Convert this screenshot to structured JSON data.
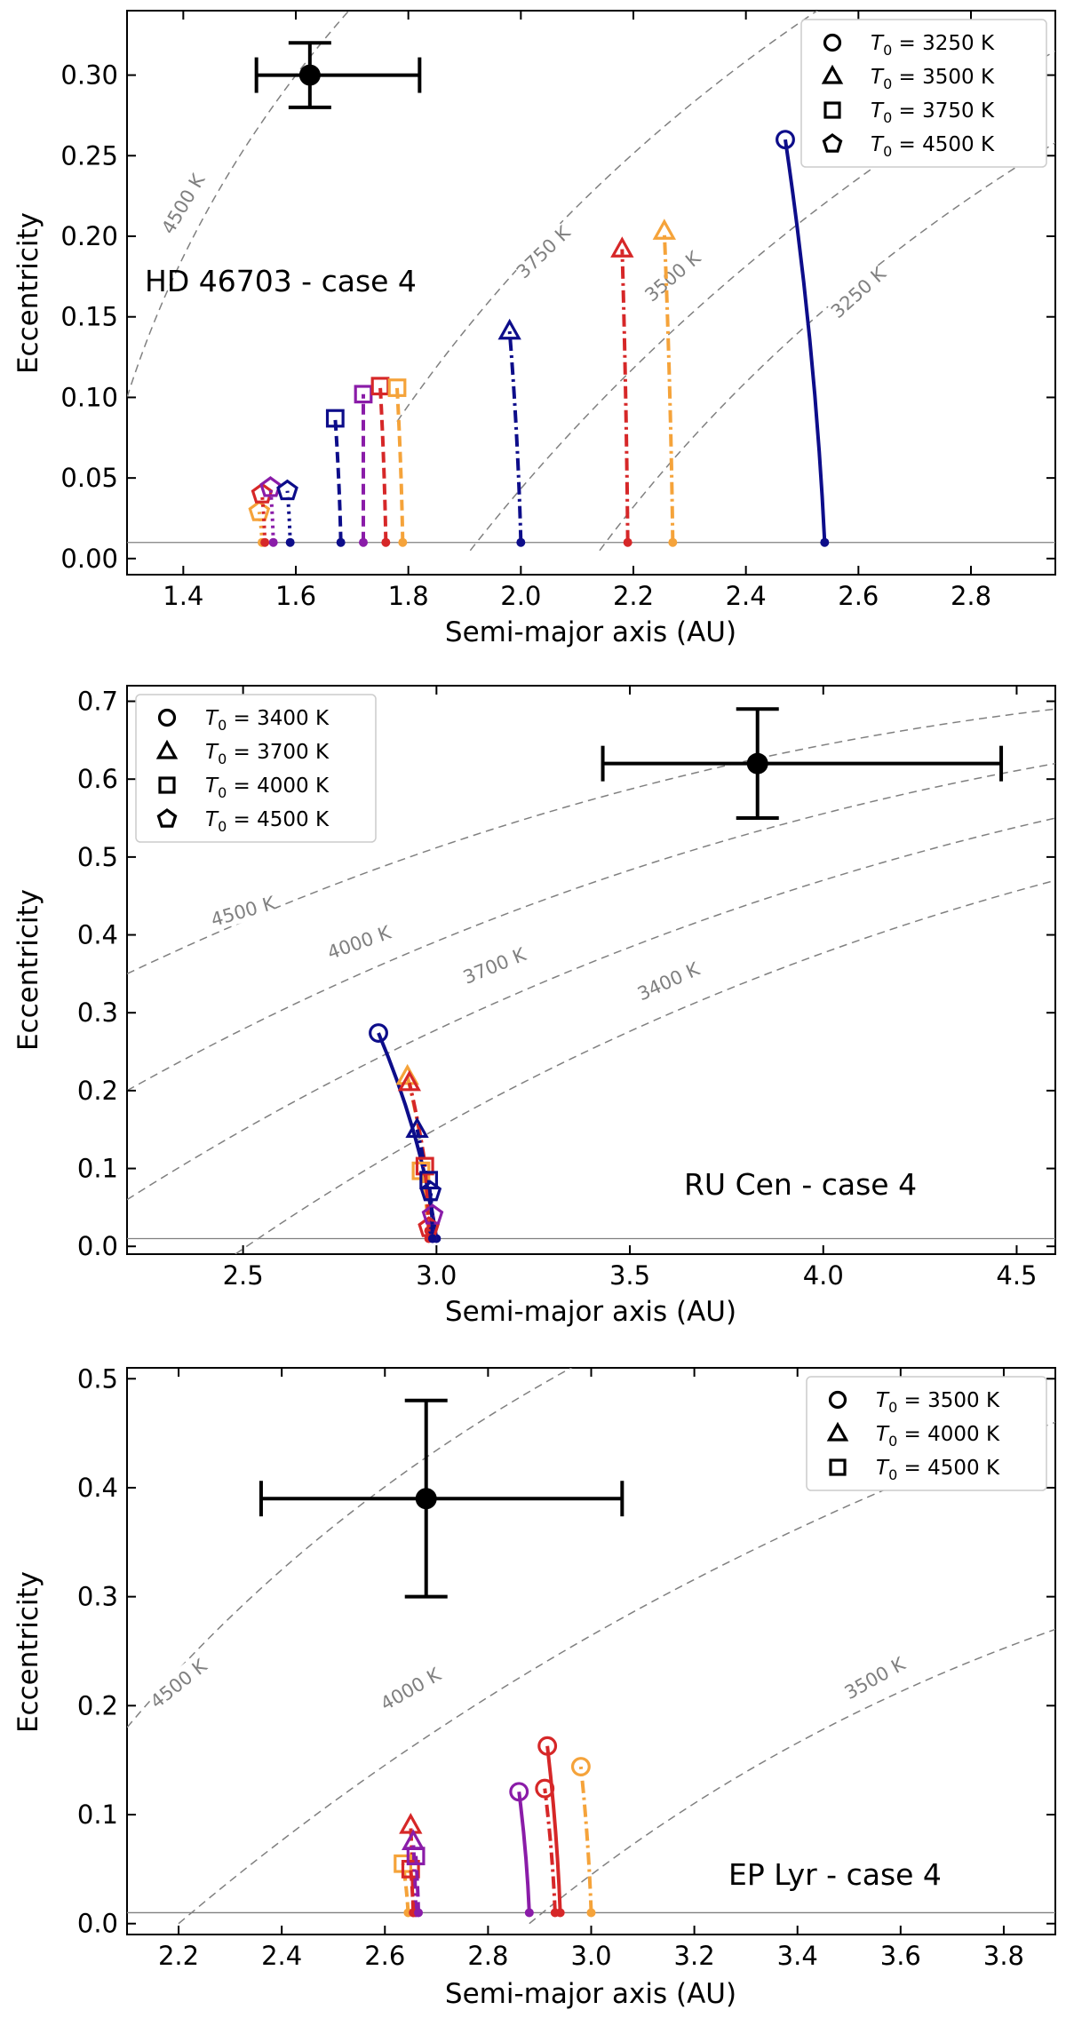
{
  "colors": {
    "navy": "#0d0d8a",
    "red": "#d62728",
    "orange": "#f5a33a",
    "purple": "#8a1ca8",
    "iso": "#808080",
    "obs": "#000000",
    "baseline": "#808080"
  },
  "chart_data": [
    {
      "type": "line",
      "title": "HD 46703 - case 4",
      "xlabel": "Semi-major axis (AU)",
      "ylabel": "Eccentricity",
      "xlim": [
        1.3,
        2.95
      ],
      "ylim": [
        -0.01,
        0.34
      ],
      "xticks": [
        "1.4",
        "1.6",
        "1.8",
        "2.0",
        "2.2",
        "2.4",
        "2.6",
        "2.8"
      ],
      "xtick_values": [
        1.4,
        1.6,
        1.8,
        2.0,
        2.2,
        2.4,
        2.6,
        2.8
      ],
      "yticks": [
        "0.00",
        "0.05",
        "0.10",
        "0.15",
        "0.20",
        "0.25",
        "0.30"
      ],
      "ytick_values": [
        0.0,
        0.05,
        0.1,
        0.15,
        0.2,
        0.25,
        0.3
      ],
      "baseline": 0.01,
      "legend_position": "top-right",
      "legend": [
        {
          "marker": "circle",
          "prefix": "T",
          "sub": "0",
          "text": " = 3250 K"
        },
        {
          "marker": "triangle",
          "prefix": "T",
          "sub": "0",
          "text": " = 3500 K"
        },
        {
          "marker": "square",
          "prefix": "T",
          "sub": "0",
          "text": " = 3750 K"
        },
        {
          "marker": "pentagon",
          "prefix": "T",
          "sub": "0",
          "text": " = 4500 K"
        }
      ],
      "observed": {
        "x": 1.625,
        "y": 0.3,
        "xerr": [
          0.095,
          0.195
        ],
        "yerr": [
          0.02,
          0.02
        ]
      },
      "isotherms": [
        {
          "label": "4500 K",
          "x0": 1.3,
          "y0": 0.1,
          "x1": 1.72,
          "y1": 0.35,
          "label_x": 1.4,
          "label_y": 0.22
        },
        {
          "label": "3750 K",
          "x0": 1.78,
          "y0": 0.085,
          "x1": 2.57,
          "y1": 0.35,
          "label_x": 2.04,
          "label_y": 0.19
        },
        {
          "label": "3500 K",
          "x0": 1.91,
          "y0": 0.005,
          "x1": 2.95,
          "y1": 0.315,
          "label_x": 2.27,
          "label_y": 0.175
        },
        {
          "label": "3250 K",
          "x0": 2.14,
          "y0": 0.005,
          "x1": 2.95,
          "y1": 0.258,
          "label_x": 2.6,
          "label_y": 0.165
        }
      ],
      "series": [
        {
          "name": "3250 K run",
          "marker": "circle",
          "color": "navy",
          "style": "solid",
          "start": [
            2.54,
            0.01
          ],
          "end": [
            2.47,
            0.26
          ]
        },
        {
          "name": "3500 K run 1",
          "marker": "triangle",
          "color": "navy",
          "style": "dashdot",
          "start": [
            2.0,
            0.01
          ],
          "end": [
            1.98,
            0.141
          ]
        },
        {
          "name": "3500 K run 2",
          "marker": "triangle",
          "color": "red",
          "style": "dashdot",
          "start": [
            2.19,
            0.01
          ],
          "end": [
            2.18,
            0.192
          ]
        },
        {
          "name": "3500 K run 3",
          "marker": "triangle",
          "color": "orange",
          "style": "dashdot",
          "start": [
            2.27,
            0.01
          ],
          "end": [
            2.255,
            0.203
          ]
        },
        {
          "name": "3750 K run 1",
          "marker": "square",
          "color": "navy",
          "style": "dashed",
          "start": [
            1.68,
            0.01
          ],
          "end": [
            1.67,
            0.087
          ]
        },
        {
          "name": "3750 K run 2",
          "marker": "square",
          "color": "purple",
          "style": "dashed",
          "start": [
            1.72,
            0.01
          ],
          "end": [
            1.72,
            0.102
          ]
        },
        {
          "name": "3750 K run 3",
          "marker": "square",
          "color": "red",
          "style": "dashed",
          "start": [
            1.76,
            0.01
          ],
          "end": [
            1.75,
            0.107
          ]
        },
        {
          "name": "3750 K run 4",
          "marker": "square",
          "color": "orange",
          "style": "dashed",
          "start": [
            1.79,
            0.01
          ],
          "end": [
            1.78,
            0.106
          ]
        },
        {
          "name": "4500 K run 1",
          "marker": "pentagon",
          "color": "orange",
          "style": "dotted",
          "start": [
            1.54,
            0.01
          ],
          "end": [
            1.535,
            0.029
          ]
        },
        {
          "name": "4500 K run 2",
          "marker": "pentagon",
          "color": "red",
          "style": "dotted",
          "start": [
            1.545,
            0.01
          ],
          "end": [
            1.54,
            0.04
          ]
        },
        {
          "name": "4500 K run 3",
          "marker": "pentagon",
          "color": "purple",
          "style": "dotted",
          "start": [
            1.56,
            0.01
          ],
          "end": [
            1.555,
            0.044
          ]
        },
        {
          "name": "4500 K run 4",
          "marker": "pentagon",
          "color": "navy",
          "style": "dotted",
          "start": [
            1.59,
            0.01
          ],
          "end": [
            1.585,
            0.042
          ]
        }
      ]
    },
    {
      "type": "line",
      "title": "RU Cen - case 4",
      "xlabel": "Semi-major axis (AU)",
      "ylabel": "Eccentricity",
      "xlim": [
        2.2,
        4.6
      ],
      "ylim": [
        -0.01,
        0.72
      ],
      "xticks": [
        "2.5",
        "3.0",
        "3.5",
        "4.0",
        "4.5"
      ],
      "xtick_values": [
        2.5,
        3.0,
        3.5,
        4.0,
        4.5
      ],
      "yticks": [
        "0.0",
        "0.1",
        "0.2",
        "0.3",
        "0.4",
        "0.5",
        "0.6",
        "0.7"
      ],
      "ytick_values": [
        0.0,
        0.1,
        0.2,
        0.3,
        0.4,
        0.5,
        0.6,
        0.7
      ],
      "baseline": 0.01,
      "legend_position": "top-left",
      "legend": [
        {
          "marker": "circle",
          "prefix": "T",
          "sub": "0",
          "text": " = 3400 K"
        },
        {
          "marker": "triangle",
          "prefix": "T",
          "sub": "0",
          "text": " = 3700 K"
        },
        {
          "marker": "square",
          "prefix": "T",
          "sub": "0",
          "text": " = 4000 K"
        },
        {
          "marker": "pentagon",
          "prefix": "T",
          "sub": "0",
          "text": " = 4500 K"
        }
      ],
      "observed": {
        "x": 3.83,
        "y": 0.62,
        "xerr": [
          0.4,
          0.63
        ],
        "yerr": [
          0.07,
          0.07
        ]
      },
      "isotherms": [
        {
          "label": "4500 K",
          "x0": 2.2,
          "y0": 0.35,
          "x1": 4.6,
          "y1": 0.69,
          "label_x": 2.5,
          "label_y": 0.43
        },
        {
          "label": "4000 K",
          "x0": 2.2,
          "y0": 0.2,
          "x1": 4.6,
          "y1": 0.62,
          "label_x": 2.8,
          "label_y": 0.39
        },
        {
          "label": "3700 K",
          "x0": 2.2,
          "y0": 0.06,
          "x1": 4.6,
          "y1": 0.55,
          "label_x": 3.15,
          "label_y": 0.36
        },
        {
          "label": "3400 K",
          "x0": 2.48,
          "y0": -0.01,
          "x1": 4.6,
          "y1": 0.47,
          "label_x": 3.6,
          "label_y": 0.34
        }
      ],
      "series": [
        {
          "name": "3400 K run",
          "marker": "circle",
          "color": "navy",
          "style": "solid",
          "start": [
            3.0,
            0.01
          ],
          "end": [
            2.85,
            0.274
          ]
        },
        {
          "name": "3700 K run 1",
          "marker": "triangle",
          "color": "orange",
          "style": "dashdot",
          "start": [
            2.99,
            0.02
          ],
          "end": [
            2.925,
            0.218
          ]
        },
        {
          "name": "3700 K run 2",
          "marker": "triangle",
          "color": "red",
          "style": "dashdot",
          "start": [
            2.99,
            0.02
          ],
          "end": [
            2.93,
            0.21
          ]
        },
        {
          "name": "3700 K run 3",
          "marker": "triangle",
          "color": "navy",
          "style": "dashdot",
          "start": [
            2.99,
            0.02
          ],
          "end": [
            2.95,
            0.15
          ]
        },
        {
          "name": "4000 K run 1",
          "marker": "square",
          "color": "orange",
          "style": "dashed",
          "start": [
            2.98,
            0.02
          ],
          "end": [
            2.96,
            0.097
          ]
        },
        {
          "name": "4000 K run 2",
          "marker": "square",
          "color": "red",
          "style": "dashed",
          "start": [
            2.98,
            0.02
          ],
          "end": [
            2.97,
            0.103
          ]
        },
        {
          "name": "4000 K run 3",
          "marker": "square",
          "color": "navy",
          "style": "dashed",
          "start": [
            2.99,
            0.02
          ],
          "end": [
            2.98,
            0.085
          ]
        },
        {
          "name": "4500 K run 1",
          "marker": "pentagon",
          "color": "red",
          "style": "dotted",
          "start": [
            2.98,
            0.01
          ],
          "end": [
            2.98,
            0.024
          ]
        },
        {
          "name": "4500 K run 2",
          "marker": "pentagon",
          "color": "purple",
          "style": "dotted",
          "start": [
            2.99,
            0.01
          ],
          "end": [
            2.99,
            0.04
          ]
        },
        {
          "name": "4500 K run 3",
          "marker": "pentagon",
          "color": "navy",
          "style": "dotted",
          "start": [
            2.99,
            0.01
          ],
          "end": [
            2.985,
            0.07
          ]
        }
      ]
    },
    {
      "type": "line",
      "title": "EP Lyr - case 4",
      "xlabel": "Semi-major axis (AU)",
      "ylabel": "Eccentricity",
      "xlim": [
        2.1,
        3.9
      ],
      "ylim": [
        -0.01,
        0.51
      ],
      "xticks": [
        "2.2",
        "2.4",
        "2.6",
        "2.8",
        "3.0",
        "3.2",
        "3.4",
        "3.6",
        "3.8"
      ],
      "xtick_values": [
        2.2,
        2.4,
        2.6,
        2.8,
        3.0,
        3.2,
        3.4,
        3.6,
        3.8
      ],
      "yticks": [
        "0.0",
        "0.1",
        "0.2",
        "0.3",
        "0.4",
        "0.5"
      ],
      "ytick_values": [
        0.0,
        0.1,
        0.2,
        0.3,
        0.4,
        0.5
      ],
      "baseline": 0.01,
      "legend_position": "top-right",
      "legend": [
        {
          "marker": "circle",
          "prefix": "T",
          "sub": "0",
          "text": " = 3500 K"
        },
        {
          "marker": "triangle",
          "prefix": "T",
          "sub": "0",
          "text": " = 4000 K"
        },
        {
          "marker": "square",
          "prefix": "T",
          "sub": "0",
          "text": " = 4500 K"
        }
      ],
      "observed": {
        "x": 2.68,
        "y": 0.39,
        "xerr": [
          0.32,
          0.38
        ],
        "yerr": [
          0.09,
          0.09
        ]
      },
      "isotherms": [
        {
          "label": "4500 K",
          "x0": 2.1,
          "y0": 0.18,
          "x1": 3.0,
          "y1": 0.52,
          "label_x": 2.2,
          "label_y": 0.22
        },
        {
          "label": "4000 K",
          "x0": 2.2,
          "y0": 0.0,
          "x1": 3.9,
          "y1": 0.46,
          "label_x": 2.65,
          "label_y": 0.215
        },
        {
          "label": "3500 K",
          "x0": 2.88,
          "y0": 0.0,
          "x1": 3.9,
          "y1": 0.27,
          "label_x": 3.55,
          "label_y": 0.225
        }
      ],
      "series": [
        {
          "name": "3500 K run 1",
          "marker": "circle",
          "color": "purple",
          "style": "solid",
          "start": [
            2.88,
            0.01
          ],
          "end": [
            2.86,
            0.121
          ]
        },
        {
          "name": "3500 K run 2",
          "marker": "circle",
          "color": "red",
          "style": "solid",
          "start": [
            2.94,
            0.01
          ],
          "end": [
            2.915,
            0.163
          ]
        },
        {
          "name": "3500 K run 3",
          "marker": "circle",
          "color": "red",
          "style": "dashdot",
          "start": [
            2.93,
            0.01
          ],
          "end": [
            2.91,
            0.124
          ]
        },
        {
          "name": "3500 K run 4",
          "marker": "circle",
          "color": "orange",
          "style": "dashdot",
          "start": [
            3.0,
            0.01
          ],
          "end": [
            2.98,
            0.144
          ]
        },
        {
          "name": "4000 K run 1",
          "marker": "triangle",
          "color": "red",
          "style": "dashdot",
          "start": [
            2.655,
            0.01
          ],
          "end": [
            2.65,
            0.09
          ]
        },
        {
          "name": "4000 K run 2",
          "marker": "triangle",
          "color": "purple",
          "style": "dashdot",
          "start": [
            2.66,
            0.01
          ],
          "end": [
            2.655,
            0.075
          ]
        },
        {
          "name": "4500 K run 1",
          "marker": "square",
          "color": "orange",
          "style": "dashed",
          "start": [
            2.645,
            0.01
          ],
          "end": [
            2.635,
            0.055
          ]
        },
        {
          "name": "4500 K run 2",
          "marker": "square",
          "color": "red",
          "style": "dashed",
          "start": [
            2.655,
            0.01
          ],
          "end": [
            2.65,
            0.05
          ]
        },
        {
          "name": "4500 K run 3",
          "marker": "square",
          "color": "purple",
          "style": "dashed",
          "start": [
            2.665,
            0.01
          ],
          "end": [
            2.66,
            0.062
          ]
        }
      ]
    }
  ]
}
